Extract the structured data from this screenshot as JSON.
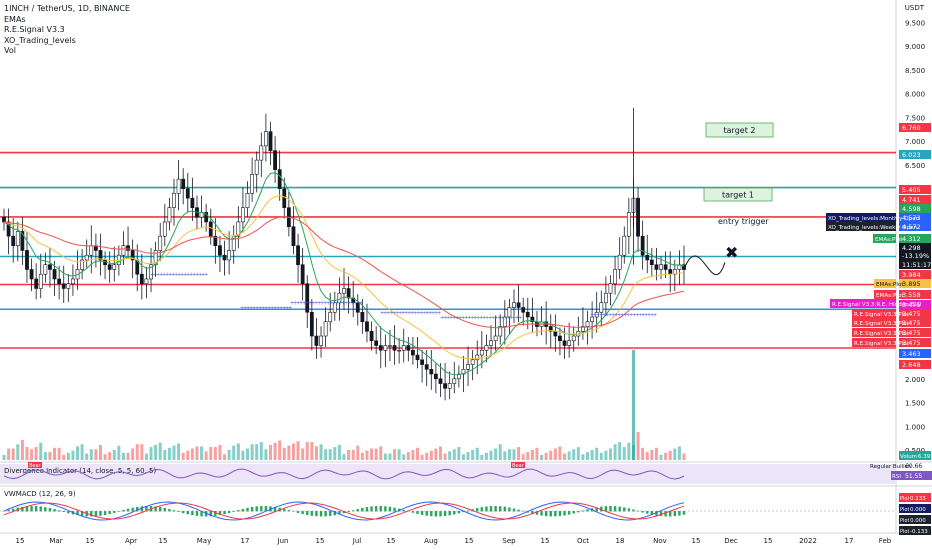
{
  "header": {
    "symbol": "1INCH / TetherUS, 1D, BINANCE",
    "indicators": [
      "EMAs",
      "R.E.Signal V3.3",
      "XO_Trading_levels",
      "Vol"
    ]
  },
  "price_axis": {
    "currency": "USDT",
    "ticks": [
      "9.500",
      "9.000",
      "8.500",
      "8.000",
      "7.500",
      "7.000",
      "6.500",
      "6.000",
      "5.500",
      "5.000",
      "4.500",
      "4.000",
      "3.500",
      "3.000",
      "2.500",
      "2.000",
      "1.500",
      "1.000",
      "0.500"
    ]
  },
  "time_axis": {
    "labels": [
      "15",
      "Mar",
      "15",
      "Apr",
      "15",
      "May",
      "17",
      "Jun",
      "15",
      "Jul",
      "15",
      "Aug",
      "15",
      "Sep",
      "15",
      "Oct",
      "18",
      "Nov",
      "15",
      "Dec",
      "15",
      "2022",
      "17",
      "Feb"
    ]
  },
  "annotations": {
    "target2": "target 2",
    "target1": "target 1",
    "entry": "entry trigger",
    "cross": "✖"
  },
  "price_labels": [
    {
      "text": "6.760",
      "kind": "red"
    },
    {
      "text": "6.023",
      "kind": "teal"
    },
    {
      "text": "5.405",
      "kind": "red"
    },
    {
      "text": "4.741",
      "kind": "red"
    },
    {
      "text": "4.598",
      "kind": "green"
    },
    {
      "text": "4.573",
      "kind": "blue"
    },
    {
      "text": "4.572",
      "kind": "blue"
    },
    {
      "text": "4.312",
      "kind": "green"
    },
    {
      "text": "4.298",
      "kind": "black"
    },
    {
      "text": "-13.19%",
      "kind": "black"
    },
    {
      "text": "11:51:17",
      "kind": "black"
    },
    {
      "text": "3.984",
      "kind": "red"
    },
    {
      "text": "3.895",
      "kind": "yellow"
    },
    {
      "text": "3.558",
      "kind": "red"
    },
    {
      "text": "3.475",
      "kind": "magenta"
    },
    {
      "text": "3.475",
      "kind": "red"
    },
    {
      "text": "3.475",
      "kind": "red"
    },
    {
      "text": "3.475",
      "kind": "red"
    },
    {
      "text": "3.475",
      "kind": "red"
    },
    {
      "text": "3.463",
      "kind": "blue"
    },
    {
      "text": "2.648",
      "kind": "red"
    }
  ],
  "line_tags": [
    {
      "text": "XO_Trading_levels:Monthly Open",
      "kind": "navy"
    },
    {
      "text": "XO_Trading_levels:Weekly Open",
      "kind": "dark"
    },
    {
      "text": "EMAs:Plot",
      "kind": "green"
    },
    {
      "text": "EMAs:Plot",
      "kind": "yellow"
    },
    {
      "text": "EMAs:Plot",
      "kind": "red"
    },
    {
      "text": "R.E.Signal V3.3:R.E. Hidden Bull",
      "kind": "magenta"
    },
    {
      "text": "R.E.Signal V3.3:Plot",
      "kind": "red"
    },
    {
      "text": "R.E.Signal V3.3:Plot",
      "kind": "red"
    },
    {
      "text": "R.E.Signal V3.3:Plot",
      "kind": "red"
    },
    {
      "text": "R.E.Signal V3.3:Plot",
      "kind": "red"
    }
  ],
  "volume": {
    "label": "Volume",
    "value": "6.391M"
  },
  "rsi": {
    "title": "Divergence Indicator (14, close, 5, 5, 60, 5)",
    "bull_label": "Regular Bullish",
    "bull_value": "60.66",
    "bear_label": "Bear",
    "bear_value": "51.55",
    "osc_label": "RSI"
  },
  "vwmacd": {
    "title": "VWMACD (12, 26, 9)",
    "values": [
      {
        "tag": "Plot",
        "value": "0.133",
        "kind": "red"
      },
      {
        "tag": "Plot",
        "value": "0.000",
        "kind": "navy"
      },
      {
        "tag": "Plot",
        "value": "0.000",
        "kind": "dark"
      },
      {
        "tag": "Plot",
        "value": "-0.133",
        "kind": "dark"
      }
    ]
  },
  "chart_data": {
    "type": "candlestick",
    "title": "1INCH / TetherUS, 1D, BINANCE",
    "y_axis": {
      "ylim": [
        0.25,
        9.8
      ],
      "unit": "USDT",
      "side": "right"
    },
    "horizontal_levels": [
      {
        "value": 6.76,
        "color": "#f23645"
      },
      {
        "value": 6.023,
        "color": "#26a69a"
      },
      {
        "value": 5.405,
        "color": "#f23645"
      },
      {
        "value": 4.573,
        "color": "#26a6c0"
      },
      {
        "value": 3.984,
        "color": "#f23645"
      },
      {
        "value": 3.463,
        "color": "#2196f3"
      },
      {
        "value": 2.648,
        "color": "#f23645"
      }
    ],
    "close_series": [
      5.3,
      5.0,
      4.8,
      5.1,
      4.7,
      4.3,
      4.1,
      3.9,
      4.2,
      4.4,
      4.3,
      4.1,
      4.0,
      3.9,
      4.0,
      4.1,
      4.3,
      4.5,
      4.6,
      4.8,
      4.7,
      4.5,
      4.4,
      4.3,
      4.4,
      4.6,
      4.8,
      4.7,
      4.5,
      4.2,
      4.0,
      4.1,
      4.4,
      4.7,
      5.0,
      5.3,
      5.6,
      5.9,
      6.2,
      6.0,
      5.8,
      5.6,
      5.4,
      5.5,
      5.3,
      5.0,
      4.8,
      4.6,
      4.5,
      4.7,
      5.0,
      5.3,
      5.6,
      5.9,
      6.3,
      6.6,
      6.9,
      7.2,
      6.8,
      6.4,
      6.0,
      5.6,
      5.2,
      4.8,
      4.4,
      4.0,
      3.4,
      2.9,
      2.7,
      2.9,
      3.2,
      3.4,
      3.6,
      3.8,
      3.9,
      3.7,
      3.6,
      3.4,
      3.2,
      3.0,
      2.8,
      2.7,
      2.6,
      2.7,
      2.7,
      2.6,
      2.6,
      2.7,
      2.6,
      2.5,
      2.4,
      2.3,
      2.2,
      2.1,
      2.0,
      1.9,
      1.8,
      1.9,
      2.0,
      2.1,
      2.2,
      2.3,
      2.4,
      2.5,
      2.6,
      2.7,
      2.8,
      2.9,
      3.1,
      3.3,
      3.5,
      3.6,
      3.5,
      3.4,
      3.3,
      3.2,
      3.1,
      3.2,
      3.1,
      3.0,
      2.9,
      2.8,
      2.7,
      2.8,
      2.9,
      3.0,
      3.1,
      3.2,
      3.3,
      3.4,
      3.6,
      3.8,
      4.0,
      4.3,
      4.6,
      5.0,
      5.5,
      5.8,
      5.0,
      4.6,
      4.5,
      4.4,
      4.3,
      4.4,
      4.3,
      4.2,
      4.3,
      4.4,
      4.298
    ],
    "ema_fast_color": "#26a65b",
    "ema_mid_color": "#f5c242",
    "ema_slow_color": "#ef5350"
  }
}
